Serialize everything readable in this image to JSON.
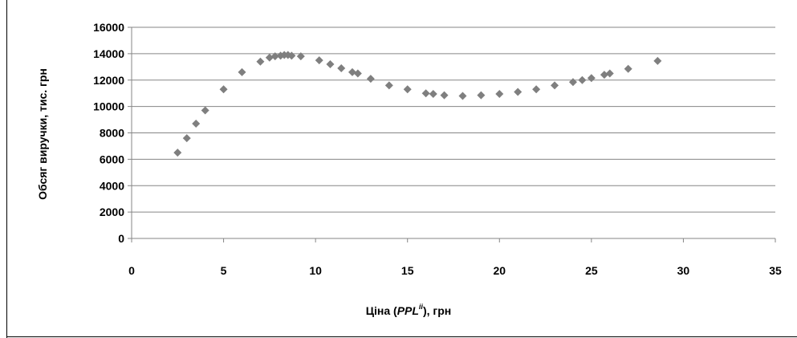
{
  "chart_data": {
    "type": "scatter",
    "title": "",
    "xlabel_prefix": "Ціна (",
    "xlabel_symbol": "PPL",
    "xlabel_superscript": "ii",
    "xlabel_suffix": "), грн",
    "ylabel": "Обсяг виручки, тис. грн",
    "xlim": [
      0,
      35
    ],
    "ylim": [
      0,
      16000
    ],
    "x_ticks": [
      0,
      5,
      10,
      15,
      20,
      25,
      30,
      35
    ],
    "y_ticks": [
      0,
      2000,
      4000,
      6000,
      8000,
      10000,
      12000,
      14000,
      16000
    ],
    "grid": true,
    "legend": "none",
    "marker": "diamond",
    "marker_color": "#7f7f7f",
    "grid_color": "#868686",
    "axis_color": "#868686",
    "series": [
      {
        "x": [
          2.5,
          3.0,
          3.5,
          4.0,
          5.0,
          6.0,
          7.0,
          7.5,
          7.8,
          8.1,
          8.3,
          8.5,
          8.7,
          9.2,
          10.2,
          10.8,
          11.4,
          12.0,
          12.3,
          13.0,
          14.0,
          15.0,
          16.0,
          16.4,
          17.0,
          18.0,
          19.0,
          20.0,
          21.0,
          22.0,
          23.0,
          24.0,
          24.5,
          25.0,
          25.7,
          26.0,
          27.0,
          28.6
        ],
        "y": [
          6500,
          7600,
          8700,
          9700,
          11300,
          12600,
          13400,
          13700,
          13800,
          13850,
          13900,
          13900,
          13850,
          13800,
          13500,
          13200,
          12900,
          12600,
          12500,
          12100,
          11600,
          11300,
          11000,
          10950,
          10850,
          10800,
          10850,
          10950,
          11100,
          11300,
          11600,
          11850,
          12000,
          12150,
          12400,
          12500,
          12850,
          13450
        ]
      }
    ]
  }
}
